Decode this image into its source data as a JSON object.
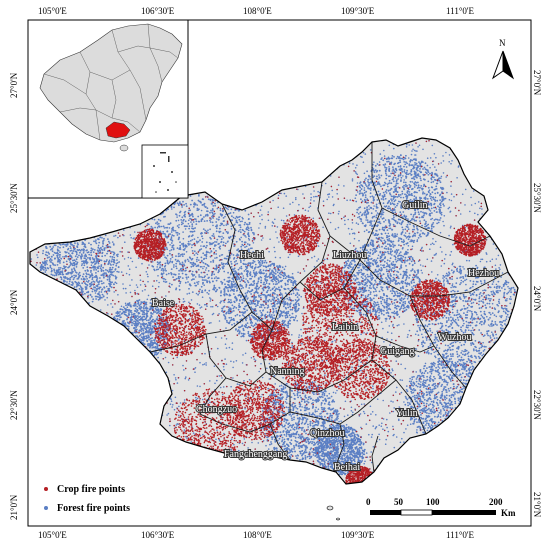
{
  "axes": {
    "top": [
      "105°0'E",
      "106°30'E",
      "108°0'E",
      "109°30'E",
      "111°0'E"
    ],
    "bottom": [
      "105°0'E",
      "106°30'E",
      "108°0'E",
      "109°30'E",
      "111°0'E"
    ],
    "left": [
      "27°0'N",
      "25°30'N",
      "24°0'N",
      "22°30'N",
      "21°0'N"
    ],
    "right": [
      "27°0'N",
      "25°30'N",
      "24°0'N",
      "22°30'N",
      "21°0'N"
    ]
  },
  "cities": [
    {
      "name": "Guilin"
    },
    {
      "name": "Hechi"
    },
    {
      "name": "Liuzhou"
    },
    {
      "name": "Hezhou"
    },
    {
      "name": "Baise"
    },
    {
      "name": "Laibin"
    },
    {
      "name": "Wuzhou"
    },
    {
      "name": "Guigang"
    },
    {
      "name": "Nanning"
    },
    {
      "name": "Yulin"
    },
    {
      "name": "Chongzuo"
    },
    {
      "name": "Qinzhou"
    },
    {
      "name": "Fangchenggang"
    },
    {
      "name": "Beihai"
    }
  ],
  "legend": {
    "crop": "Crop fire points",
    "forest": "Forest fire points"
  },
  "scale": {
    "ticks": [
      "0",
      "50",
      "100",
      "200"
    ],
    "unit": "Km"
  },
  "north": "N",
  "colors": {
    "crop": "#b51f24",
    "forest": "#5b7fc4",
    "land": "#e3e3e3",
    "inset_land": "#dcdcdc",
    "inset_highlight": "#e01010"
  }
}
